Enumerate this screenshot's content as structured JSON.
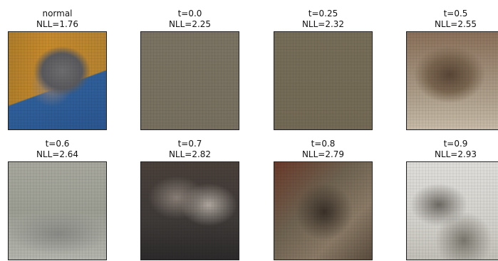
{
  "panels": [
    {
      "title": "normal",
      "subtitle": "NLL=1.76"
    },
    {
      "title": "t=0.0",
      "subtitle": "NLL=2.25"
    },
    {
      "title": "t=0.25",
      "subtitle": "NLL=2.32"
    },
    {
      "title": "t=0.5",
      "subtitle": "NLL=2.55"
    },
    {
      "title": "t=0.6",
      "subtitle": "NLL=2.64"
    },
    {
      "title": "t=0.7",
      "subtitle": "NLL=2.82"
    },
    {
      "title": "t=0.8",
      "subtitle": "NLL=2.79"
    },
    {
      "title": "t=0.9",
      "subtitle": "NLL=2.93"
    }
  ]
}
